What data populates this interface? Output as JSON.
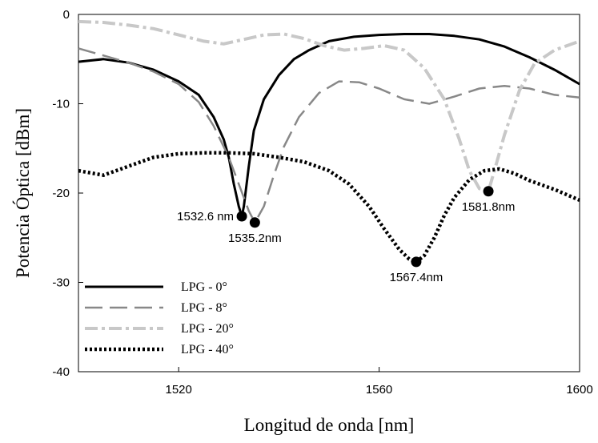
{
  "chart_data": {
    "type": "line",
    "title": "",
    "xlabel": "Longitud de onda [nm]",
    "ylabel": "Potencia Óptica [dBm]",
    "xlim": [
      1500,
      1600
    ],
    "ylim": [
      -40,
      0
    ],
    "x_ticks": [
      1520,
      1560,
      1600
    ],
    "y_ticks": [
      0,
      -10,
      -20,
      -30,
      -40
    ],
    "grid": false,
    "legend_position": "bottom-left",
    "series": [
      {
        "name": "LPG - 0°",
        "style": "solid",
        "color": "#000000",
        "x": [
          1500,
          1505,
          1510,
          1515,
          1520,
          1524,
          1527,
          1529,
          1530,
          1531,
          1532,
          1532.6,
          1533,
          1534,
          1535,
          1537,
          1540,
          1543,
          1546,
          1550,
          1555,
          1560,
          1565,
          1570,
          1575,
          1580,
          1585,
          1590,
          1595,
          1600
        ],
        "y": [
          -5.3,
          -5.0,
          -5.4,
          -6.2,
          -7.5,
          -9.0,
          -11.5,
          -14.0,
          -16.0,
          -19.0,
          -21.5,
          -22.6,
          -21.5,
          -17.0,
          -13.0,
          -9.5,
          -6.8,
          -5.0,
          -4.0,
          -3.0,
          -2.5,
          -2.3,
          -2.2,
          -2.2,
          -2.4,
          -2.8,
          -3.6,
          -4.8,
          -6.2,
          -7.8
        ]
      },
      {
        "name": "LPG - 8°",
        "style": "dashed",
        "color": "#888888",
        "x": [
          1500,
          1505,
          1510,
          1515,
          1520,
          1524,
          1527,
          1530,
          1532,
          1534,
          1535.2,
          1537,
          1539,
          1541,
          1544,
          1548,
          1552,
          1556,
          1560,
          1565,
          1570,
          1575,
          1580,
          1585,
          1590,
          1595,
          1600
        ],
        "y": [
          -3.8,
          -4.6,
          -5.4,
          -6.4,
          -7.8,
          -9.8,
          -12.5,
          -16.0,
          -19.0,
          -22.0,
          -23.3,
          -21.5,
          -18.0,
          -14.8,
          -11.5,
          -8.8,
          -7.5,
          -7.6,
          -8.3,
          -9.5,
          -10.0,
          -9.2,
          -8.3,
          -8.0,
          -8.3,
          -9.0,
          -9.3
        ]
      },
      {
        "name": "LPG - 20°",
        "style": "dash-dot",
        "color": "#c8c8c8",
        "x": [
          1500,
          1505,
          1510,
          1515,
          1520,
          1525,
          1529,
          1533,
          1537,
          1541,
          1545,
          1549,
          1553,
          1557,
          1561,
          1565,
          1569,
          1573,
          1576,
          1578,
          1580,
          1581.8,
          1583,
          1585,
          1588,
          1591,
          1595,
          1600
        ],
        "y": [
          -0.8,
          -0.9,
          -1.2,
          -1.6,
          -2.3,
          -3.0,
          -3.3,
          -2.8,
          -2.3,
          -2.2,
          -2.7,
          -3.5,
          -4.0,
          -3.8,
          -3.5,
          -4.0,
          -6.0,
          -9.5,
          -14.0,
          -17.5,
          -19.5,
          -19.8,
          -17.5,
          -13.5,
          -8.5,
          -5.5,
          -4.0,
          -3.0
        ]
      },
      {
        "name": "LPG - 40°",
        "style": "dotted",
        "color": "#000000",
        "x": [
          1500,
          1505,
          1510,
          1515,
          1520,
          1525,
          1530,
          1535,
          1540,
          1545,
          1550,
          1554,
          1558,
          1561,
          1564,
          1566,
          1567.4,
          1569,
          1571,
          1573,
          1575,
          1578,
          1581,
          1584,
          1587,
          1590,
          1595,
          1600
        ],
        "y": [
          -17.5,
          -18.0,
          -17.0,
          -16.0,
          -15.6,
          -15.5,
          -15.5,
          -15.6,
          -16.0,
          -16.5,
          -17.5,
          -19.0,
          -21.5,
          -24.0,
          -26.3,
          -27.4,
          -27.7,
          -27.0,
          -25.0,
          -22.5,
          -20.5,
          -18.5,
          -17.5,
          -17.3,
          -17.8,
          -18.6,
          -19.6,
          -20.8
        ]
      }
    ],
    "annotations": [
      {
        "label": "1532.6 nm",
        "x": 1532.6,
        "y": -22.6
      },
      {
        "label": "1535.2nm",
        "x": 1535.2,
        "y": -23.3
      },
      {
        "label": "1567.4nm",
        "x": 1567.4,
        "y": -27.7
      },
      {
        "label": "1581.8nm",
        "x": 1581.8,
        "y": -19.8
      }
    ]
  }
}
